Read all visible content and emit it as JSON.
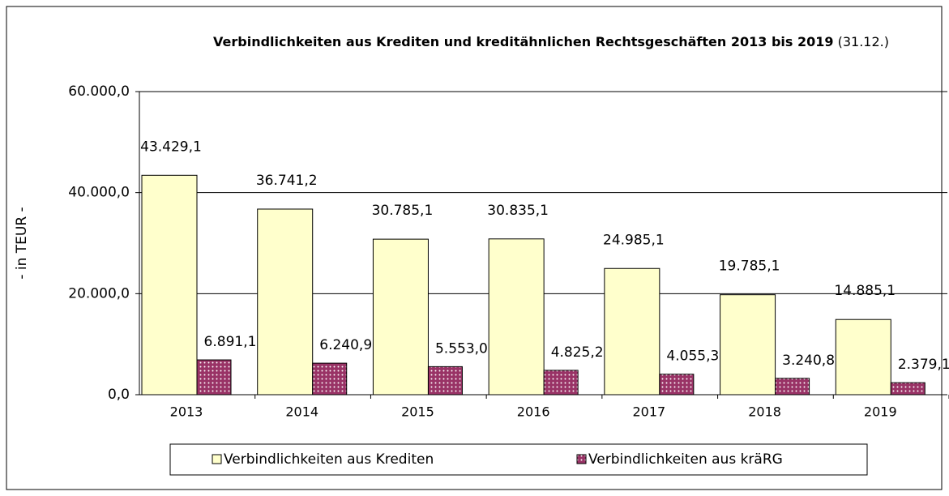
{
  "chart_data": {
    "type": "bar",
    "title": "Verbindlichkeiten aus Krediten und kreditähnlichen Rechtsgeschäften 2013 bis 2019",
    "subtitle": "(31.12.)",
    "y_label": "- in TEUR -",
    "categories": [
      "2013",
      "2014",
      "2015",
      "2016",
      "2017",
      "2018",
      "2019"
    ],
    "series": [
      {
        "name": "Verbindlichkeiten aus Krediten",
        "color": "#ffffcc",
        "values": [
          43429.1,
          36741.2,
          30785.1,
          30835.1,
          24985.1,
          19785.1,
          14885.1
        ],
        "value_labels": [
          "43.429,1",
          "36.741,2",
          "30.785,1",
          "30.835,1",
          "24.985,1",
          "19.785,1",
          "14.885,1"
        ]
      },
      {
        "name": "Verbindlichkeiten aus kräRG",
        "color": "#993366",
        "values": [
          6891.1,
          6240.9,
          5553.0,
          4825.2,
          4055.3,
          3240.8,
          2379.1
        ],
        "value_labels": [
          "6.891,1",
          "6.240,9",
          "5.553,0",
          "4.825,2",
          "4.055,3",
          "3.240,8",
          "2.379,1"
        ]
      }
    ],
    "ylim": [
      0,
      60000
    ],
    "yticks": [
      {
        "value": 0,
        "label": "0,0"
      },
      {
        "value": 20000,
        "label": "20.000,0"
      },
      {
        "value": 40000,
        "label": "40.000,0"
      },
      {
        "value": 60000,
        "label": "60.000,0"
      }
    ],
    "grid": true,
    "legend": "bottom"
  }
}
